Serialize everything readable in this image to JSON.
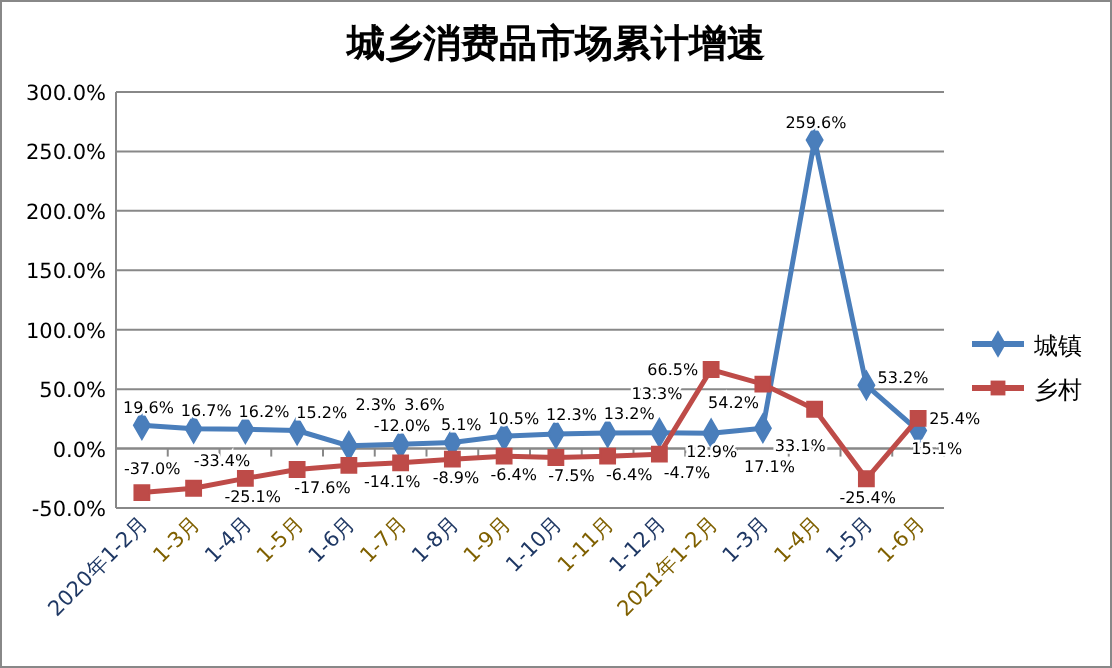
{
  "chart_data": {
    "type": "line",
    "title": "城乡消费品市场累计增速",
    "categories": [
      "2020年1-2月",
      "1-3月",
      "1-4月",
      "1-5月",
      "1-6月",
      "1-7月",
      "1-8月",
      "1-9月",
      "1-10月",
      "1-11月",
      "1-12月",
      "2021年1-2月",
      "1-3月",
      "1-4月",
      "1-5月",
      "1-6月"
    ],
    "series": [
      {
        "name": "城镇",
        "color": "#4a7ebb",
        "marker": "diamond",
        "values": [
          19.6,
          16.7,
          16.2,
          15.2,
          2.3,
          3.6,
          5.1,
          10.5,
          12.3,
          13.2,
          13.3,
          12.9,
          17.1,
          259.6,
          53.2,
          15.1
        ],
        "value_labels": [
          "19.6%",
          "16.7%",
          "16.2%",
          "15.2%",
          "2.3%",
          "3.6%",
          "5.1%",
          "10.5%",
          "12.3%",
          "13.2%",
          "13.3%",
          "12.9%",
          "17.1%",
          "259.6%",
          "53.2%",
          "15.1%"
        ]
      },
      {
        "name": "乡村",
        "color": "#be4b48",
        "marker": "square",
        "values": [
          -37.0,
          -33.4,
          -25.1,
          -17.6,
          -14.1,
          -12.0,
          -8.9,
          -6.4,
          -7.5,
          -6.4,
          -4.7,
          66.5,
          54.2,
          33.1,
          -25.4,
          25.4
        ],
        "value_labels": [
          "-37.0%",
          "-33.4%",
          "-25.1%",
          "-17.6%",
          "-14.1%",
          "-12.0%",
          "-8.9%",
          "-6.4%",
          "-7.5%",
          "-6.4%",
          "-4.7%",
          "66.5%",
          "54.2%",
          "33.1%",
          "-25.4%",
          "25.4%"
        ]
      }
    ],
    "ylim": [
      -50,
      300
    ],
    "yticks": [
      {
        "value": -50,
        "label": "-50.0%"
      },
      {
        "value": 0,
        "label": "0.0%"
      },
      {
        "value": 50,
        "label": "50.0%"
      },
      {
        "value": 100,
        "label": "100.0%"
      },
      {
        "value": 150,
        "label": "150.0%"
      },
      {
        "value": 200,
        "label": "200.0%"
      },
      {
        "value": 250,
        "label": "250.0%"
      },
      {
        "value": 300,
        "label": "300.0%"
      }
    ],
    "grid": "y",
    "legend": "right",
    "data_labels": true
  }
}
